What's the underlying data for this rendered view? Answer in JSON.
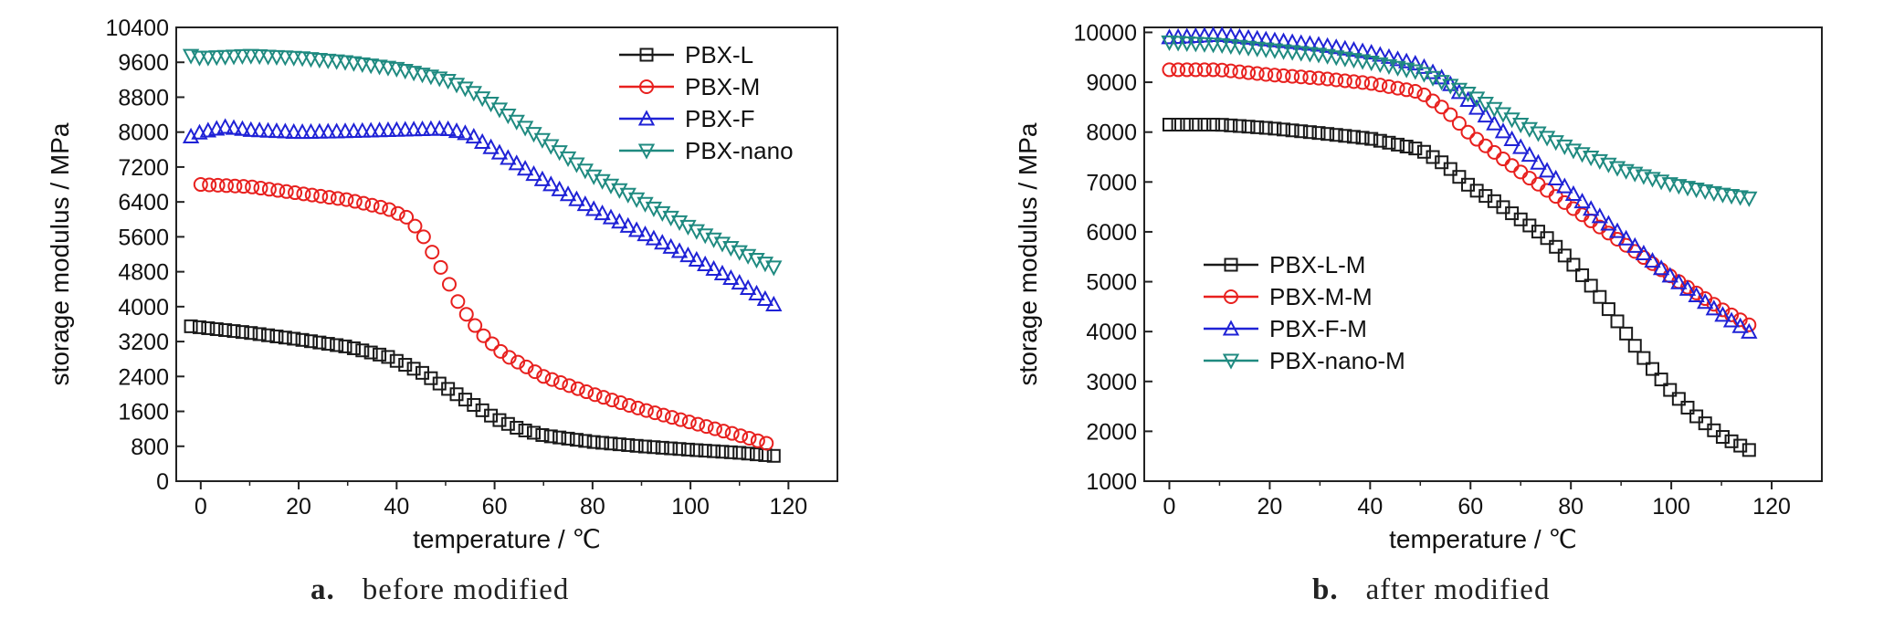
{
  "chart_data": [
    {
      "type": "scatter",
      "panel_letter": "a.",
      "panel_caption": "before modified",
      "xlabel": "temperature / ℃",
      "ylabel": "storage modulus / MPa",
      "xlim": [
        -5,
        130
      ],
      "ylim": [
        0,
        10400
      ],
      "xticks": [
        0,
        20,
        40,
        60,
        80,
        100,
        120
      ],
      "yticks": [
        0,
        800,
        1600,
        2400,
        3200,
        4000,
        4800,
        5600,
        6400,
        7200,
        8000,
        8800,
        9600,
        10400
      ],
      "legend_position": "top-right",
      "series": [
        {
          "name": "PBX-L",
          "marker": "square",
          "color": "#1a1a1a",
          "points": [
            [
              -2,
              3550
            ],
            [
              10,
              3400
            ],
            [
              20,
              3250
            ],
            [
              30,
              3080
            ],
            [
              38,
              2860
            ],
            [
              45,
              2500
            ],
            [
              50,
              2150
            ],
            [
              55,
              1800
            ],
            [
              60,
              1450
            ],
            [
              65,
              1200
            ],
            [
              70,
              1050
            ],
            [
              80,
              900
            ],
            [
              90,
              800
            ],
            [
              100,
              720
            ],
            [
              110,
              650
            ],
            [
              117,
              580
            ]
          ]
        },
        {
          "name": "PBX-M",
          "marker": "circle",
          "color": "#e8201e",
          "points": [
            [
              0,
              6800
            ],
            [
              10,
              6750
            ],
            [
              20,
              6600
            ],
            [
              30,
              6450
            ],
            [
              38,
              6250
            ],
            [
              42,
              6050
            ],
            [
              45,
              5700
            ],
            [
              48,
              5100
            ],
            [
              50,
              4700
            ],
            [
              52,
              4200
            ],
            [
              55,
              3700
            ],
            [
              58,
              3300
            ],
            [
              62,
              2900
            ],
            [
              70,
              2400
            ],
            [
              80,
              2000
            ],
            [
              90,
              1650
            ],
            [
              100,
              1350
            ],
            [
              110,
              1050
            ],
            [
              117,
              820
            ]
          ]
        },
        {
          "name": "PBX-F",
          "marker": "triangle-up",
          "color": "#1f22d6",
          "points": [
            [
              -2,
              7900
            ],
            [
              0,
              8000
            ],
            [
              5,
              8120
            ],
            [
              10,
              8050
            ],
            [
              20,
              8000
            ],
            [
              30,
              8020
            ],
            [
              40,
              8050
            ],
            [
              50,
              8080
            ],
            [
              55,
              7950
            ],
            [
              60,
              7600
            ],
            [
              70,
              6900
            ],
            [
              80,
              6250
            ],
            [
              90,
              5700
            ],
            [
              100,
              5150
            ],
            [
              110,
              4550
            ],
            [
              117,
              4050
            ]
          ]
        },
        {
          "name": "PBX-nano",
          "marker": "triangle-down",
          "color": "#1f8a80",
          "points": [
            [
              -2,
              9750
            ],
            [
              0,
              9700
            ],
            [
              10,
              9750
            ],
            [
              20,
              9700
            ],
            [
              30,
              9600
            ],
            [
              40,
              9450
            ],
            [
              50,
              9200
            ],
            [
              55,
              8950
            ],
            [
              60,
              8600
            ],
            [
              70,
              7800
            ],
            [
              80,
              7000
            ],
            [
              90,
              6400
            ],
            [
              100,
              5800
            ],
            [
              110,
              5250
            ],
            [
              117,
              4900
            ]
          ]
        }
      ]
    },
    {
      "type": "scatter",
      "panel_letter": "b.",
      "panel_caption": "after modified",
      "xlabel": "temperature / ℃",
      "ylabel": "storage modulus / MPa",
      "xlim": [
        -5,
        130
      ],
      "ylim": [
        1000,
        10100
      ],
      "xticks": [
        0,
        20,
        40,
        60,
        80,
        100,
        120
      ],
      "yticks": [
        1000,
        2000,
        3000,
        4000,
        5000,
        6000,
        7000,
        8000,
        9000,
        10000
      ],
      "legend_position": "middle-left",
      "series": [
        {
          "name": "PBX-L-M",
          "marker": "square",
          "color": "#1a1a1a",
          "points": [
            [
              0,
              8150
            ],
            [
              10,
              8150
            ],
            [
              20,
              8080
            ],
            [
              30,
              7980
            ],
            [
              40,
              7870
            ],
            [
              50,
              7650
            ],
            [
              55,
              7350
            ],
            [
              60,
              6900
            ],
            [
              65,
              6600
            ],
            [
              70,
              6250
            ],
            [
              75,
              5900
            ],
            [
              80,
              5400
            ],
            [
              85,
              4800
            ],
            [
              90,
              4100
            ],
            [
              95,
              3400
            ],
            [
              100,
              2800
            ],
            [
              105,
              2300
            ],
            [
              110,
              1900
            ],
            [
              116,
              1600
            ]
          ]
        },
        {
          "name": "PBX-M-M",
          "marker": "circle",
          "color": "#e8201e",
          "points": [
            [
              0,
              9250
            ],
            [
              10,
              9250
            ],
            [
              20,
              9150
            ],
            [
              30,
              9080
            ],
            [
              40,
              8980
            ],
            [
              50,
              8800
            ],
            [
              55,
              8450
            ],
            [
              60,
              7950
            ],
            [
              70,
              7200
            ],
            [
              80,
              6500
            ],
            [
              90,
              5800
            ],
            [
              100,
              5100
            ],
            [
              110,
              4450
            ],
            [
              117,
              4050
            ]
          ]
        },
        {
          "name": "PBX-F-M",
          "marker": "triangle-up",
          "color": "#1f22d6",
          "points": [
            [
              0,
              9900
            ],
            [
              10,
              9950
            ],
            [
              20,
              9850
            ],
            [
              30,
              9750
            ],
            [
              40,
              9600
            ],
            [
              50,
              9350
            ],
            [
              55,
              9050
            ],
            [
              60,
              8600
            ],
            [
              70,
              7700
            ],
            [
              80,
              6800
            ],
            [
              90,
              5950
            ],
            [
              100,
              5100
            ],
            [
              110,
              4350
            ],
            [
              117,
              3900
            ]
          ]
        },
        {
          "name": "PBX-nano-M",
          "marker": "triangle-down",
          "color": "#1f8a80",
          "points": [
            [
              0,
              9800
            ],
            [
              10,
              9750
            ],
            [
              20,
              9650
            ],
            [
              30,
              9550
            ],
            [
              40,
              9400
            ],
            [
              50,
              9200
            ],
            [
              60,
              8750
            ],
            [
              70,
              8150
            ],
            [
              80,
              7650
            ],
            [
              90,
              7250
            ],
            [
              100,
              6950
            ],
            [
              110,
              6750
            ],
            [
              117,
              6650
            ]
          ]
        }
      ]
    }
  ]
}
